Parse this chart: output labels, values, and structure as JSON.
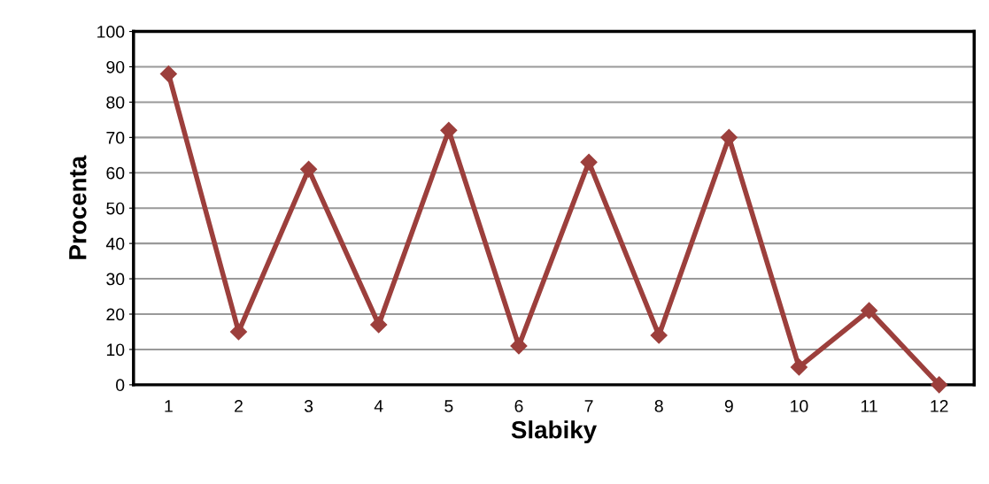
{
  "chart_data": {
    "type": "line",
    "xlabel": "Slabiky",
    "ylabel": "Procenta",
    "categories": [
      "1",
      "2",
      "3",
      "4",
      "5",
      "6",
      "7",
      "8",
      "9",
      "10",
      "11",
      "12"
    ],
    "series": [
      {
        "color": "#9c3f3c",
        "values": [
          88,
          15,
          61,
          17,
          72,
          11,
          63,
          14,
          70,
          5,
          21,
          0
        ]
      }
    ],
    "ylim": [
      0,
      100
    ],
    "yticks": [
      0,
      10,
      20,
      30,
      40,
      50,
      60,
      70,
      80,
      90,
      100
    ],
    "grid": "y",
    "marker": "diamond",
    "line_style": "solid",
    "legend": false
  }
}
